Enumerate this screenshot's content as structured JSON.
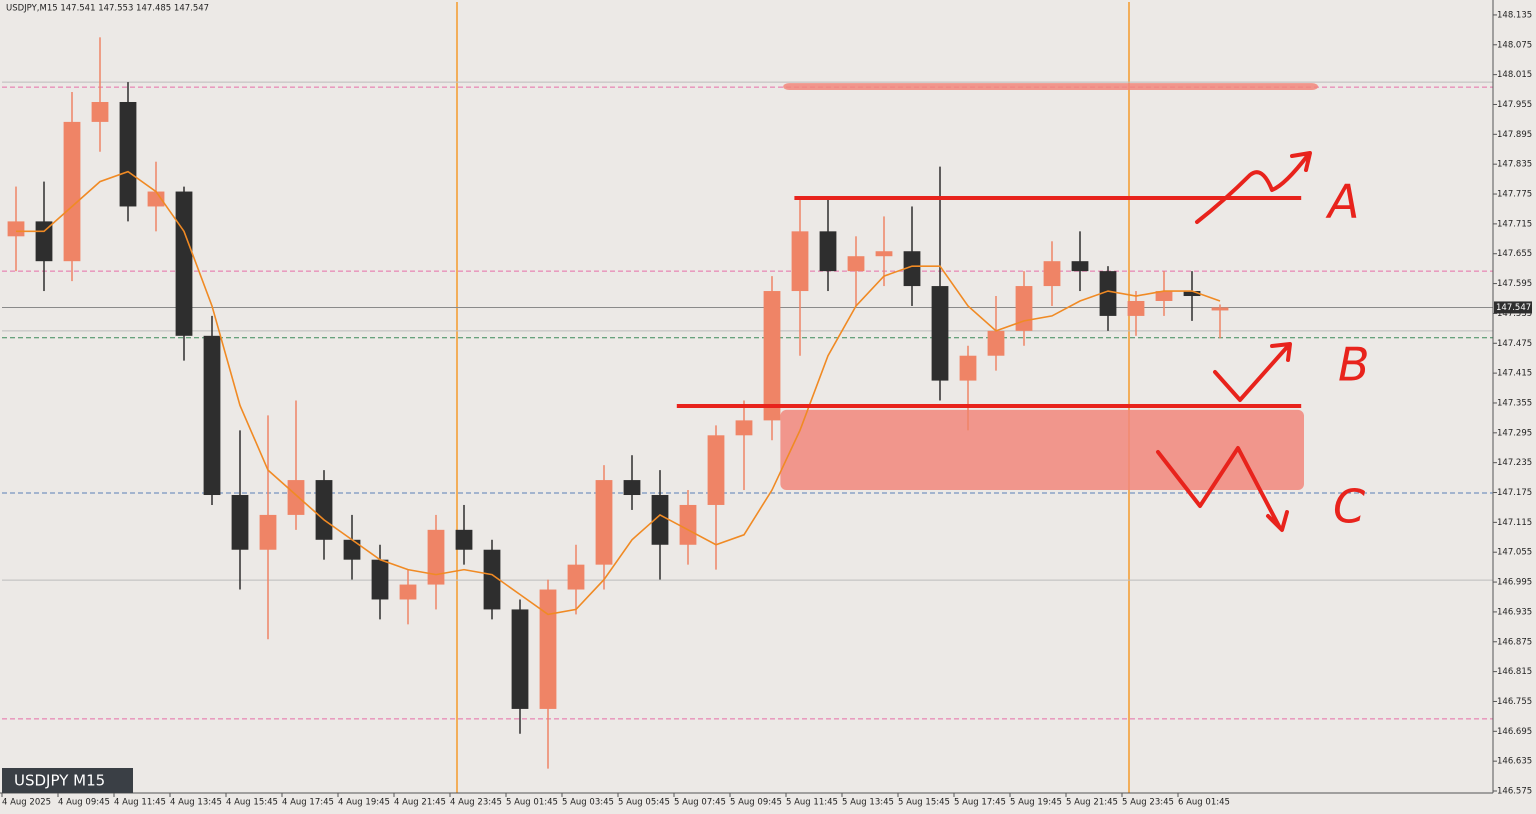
{
  "chart_data": {
    "type": "candlestick",
    "header": "USDJPY,M15 147.541 147.553 147.485 147.547",
    "symbol_badge": "USDJPY M15",
    "xlim": [
      0,
      53.25
    ],
    "xticks": [
      {
        "value": 0,
        "label": "4 Aug 2025"
      },
      {
        "value": 2,
        "label": "4 Aug 09:45"
      },
      {
        "value": 4,
        "label": "4 Aug 11:45"
      },
      {
        "value": 6,
        "label": "4 Aug 13:45"
      },
      {
        "value": 8,
        "label": "4 Aug 15:45"
      },
      {
        "value": 10,
        "label": "4 Aug 17:45"
      },
      {
        "value": 12,
        "label": "4 Aug 19:45"
      },
      {
        "value": 14,
        "label": "4 Aug 21:45"
      },
      {
        "value": 16,
        "label": "4 Aug 23:45"
      },
      {
        "value": 18,
        "label": "5 Aug 01:45"
      },
      {
        "value": 20,
        "label": "5 Aug 03:45"
      },
      {
        "value": 22,
        "label": "5 Aug 05:45"
      },
      {
        "value": 24,
        "label": "5 Aug 07:45"
      },
      {
        "value": 26,
        "label": "5 Aug 09:45"
      },
      {
        "value": 28,
        "label": "5 Aug 11:45"
      },
      {
        "value": 30,
        "label": "5 Aug 13:45"
      },
      {
        "value": 32,
        "label": "5 Aug 15:45"
      },
      {
        "value": 34,
        "label": "5 Aug 17:45"
      },
      {
        "value": 36,
        "label": "5 Aug 19:45"
      },
      {
        "value": 38,
        "label": "5 Aug 21:45"
      },
      {
        "value": 40,
        "label": "5 Aug 23:45"
      },
      {
        "value": 42,
        "label": "6 Aug 01:45"
      }
    ],
    "ylim": [
      146.571,
      148.161
    ],
    "yticks": [
      148.135,
      148.075,
      148.015,
      147.955,
      147.895,
      147.835,
      147.775,
      147.715,
      147.655,
      147.595,
      147.535,
      147.475,
      147.415,
      147.355,
      147.295,
      147.235,
      147.175,
      147.115,
      147.055,
      146.995,
      146.935,
      146.875,
      146.815,
      146.755,
      146.695,
      146.635,
      146.575
    ],
    "bull_color": "#ef8466",
    "bear_color": "#2e2e2e",
    "candles": {
      "x": [
        0.5,
        1.5,
        2.5,
        3.5,
        4.5,
        5.5,
        6.5,
        7.5,
        8.5,
        9.5,
        10.5,
        11.5,
        12.5,
        13.5,
        14.5,
        15.5,
        16.5,
        17.5,
        18.5,
        19.5,
        20.5,
        21.5,
        22.5,
        23.5,
        24.5,
        25.5,
        26.5,
        27.5,
        28.5,
        29.5,
        30.5,
        31.5,
        32.5,
        33.5,
        34.5,
        35.5,
        36.5,
        37.5,
        38.5,
        39.5,
        40.5,
        41.5,
        42.5,
        43.5
      ],
      "open": [
        147.69,
        147.72,
        147.64,
        147.92,
        147.96,
        147.75,
        147.78,
        147.49,
        147.17,
        147.06,
        147.13,
        147.2,
        147.08,
        147.04,
        146.96,
        146.99,
        147.1,
        147.06,
        146.94,
        146.74,
        146.98,
        147.03,
        147.2,
        147.17,
        147.07,
        147.15,
        147.29,
        147.32,
        147.58,
        147.7,
        147.62,
        147.65,
        147.66,
        147.59,
        147.4,
        147.45,
        147.5,
        147.59,
        147.64,
        147.62,
        147.53,
        147.56,
        147.58,
        147.541
      ],
      "high": [
        147.79,
        147.8,
        147.98,
        148.09,
        148.0,
        147.84,
        147.79,
        147.53,
        147.3,
        147.33,
        147.36,
        147.22,
        147.13,
        147.07,
        147.02,
        147.13,
        147.15,
        147.08,
        146.96,
        147.0,
        147.07,
        147.23,
        147.25,
        147.22,
        147.18,
        147.31,
        147.36,
        147.61,
        147.77,
        147.77,
        147.69,
        147.73,
        147.75,
        147.83,
        147.47,
        147.57,
        147.62,
        147.68,
        147.7,
        147.63,
        147.58,
        147.62,
        147.62,
        147.553
      ],
      "low": [
        147.62,
        147.58,
        147.6,
        147.86,
        147.72,
        147.7,
        147.44,
        147.15,
        146.98,
        146.88,
        147.1,
        147.04,
        147.0,
        146.92,
        146.91,
        146.94,
        147.03,
        146.92,
        146.69,
        146.62,
        146.93,
        146.98,
        147.14,
        147.0,
        147.03,
        147.02,
        147.18,
        147.28,
        147.45,
        147.58,
        147.55,
        147.59,
        147.55,
        147.36,
        147.3,
        147.42,
        147.47,
        147.55,
        147.58,
        147.5,
        147.49,
        147.53,
        147.52,
        147.485
      ],
      "close": [
        147.72,
        147.64,
        147.92,
        147.96,
        147.75,
        147.78,
        147.49,
        147.17,
        147.06,
        147.13,
        147.2,
        147.08,
        147.04,
        146.96,
        146.99,
        147.1,
        147.06,
        146.94,
        146.74,
        146.98,
        147.03,
        147.2,
        147.17,
        147.07,
        147.15,
        147.29,
        147.32,
        147.58,
        147.7,
        147.62,
        147.65,
        147.66,
        147.59,
        147.4,
        147.45,
        147.5,
        147.59,
        147.64,
        147.62,
        147.53,
        147.56,
        147.58,
        147.57,
        147.547
      ]
    },
    "moving_average": {
      "color": "#f08a24",
      "values": [
        147.7,
        147.7,
        147.75,
        147.8,
        147.82,
        147.78,
        147.7,
        147.55,
        147.35,
        147.22,
        147.17,
        147.12,
        147.08,
        147.04,
        147.02,
        147.01,
        147.02,
        147.01,
        146.97,
        146.93,
        146.94,
        147.0,
        147.08,
        147.13,
        147.1,
        147.07,
        147.09,
        147.18,
        147.3,
        147.45,
        147.55,
        147.61,
        147.63,
        147.63,
        147.55,
        147.5,
        147.52,
        147.53,
        147.56,
        147.58,
        147.57,
        147.58,
        147.58,
        147.56
      ]
    },
    "levels": [
      {
        "value": 148.0,
        "color": "#bdbdbd",
        "dash": false
      },
      {
        "value": 147.99,
        "color": "#e56fa8",
        "dash": true
      },
      {
        "value": 147.62,
        "color": "#e56fa8",
        "dash": true
      },
      {
        "value": 147.5,
        "color": "#bdbdbd",
        "dash": false
      },
      {
        "value": 147.486,
        "color": "#3d8a5a",
        "dash": true
      },
      {
        "value": 147.174,
        "color": "#5a7fb5",
        "dash": true
      },
      {
        "value": 146.999,
        "color": "#bdbdbd",
        "dash": false
      },
      {
        "value": 146.72,
        "color": "#e56fa8",
        "dash": true
      }
    ],
    "current_price": 147.547,
    "zones": [
      {
        "low": 147.984,
        "high": 147.998,
        "from": 27.9,
        "to": 47.0
      },
      {
        "low": 147.18,
        "high": 147.341,
        "from": 27.8,
        "to": 46.5
      }
    ],
    "zone_color": "#f2877b",
    "lines": [
      {
        "value": 147.767,
        "from": 28.3,
        "to": 46.4
      },
      {
        "value": 147.349,
        "from": 24.1,
        "to": 46.4
      }
    ],
    "line_color": "#e8231c",
    "scenarios": [
      "A",
      "B",
      "C"
    ]
  }
}
